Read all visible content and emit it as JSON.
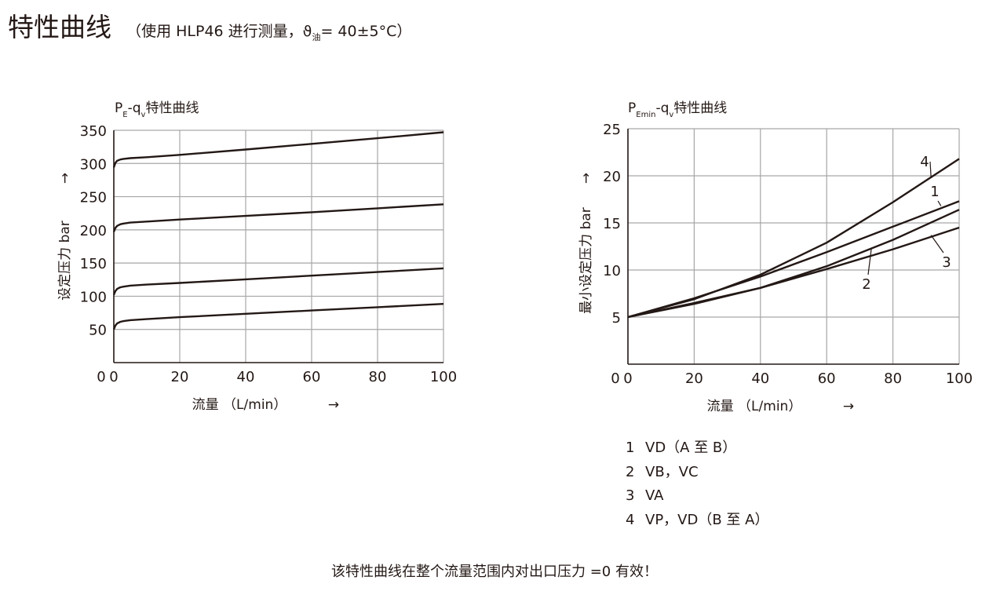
{
  "header": {
    "title": "特性曲线",
    "subtitle_a": "（使用 HLP46 进行测量，ϑ",
    "subtitle_sub": "油",
    "subtitle_b": "= 40±5°C）"
  },
  "colors": {
    "curve": "#231815",
    "grid": "#a6a6a6",
    "axis": "#231815",
    "text": "#231815"
  },
  "chart_data": [
    {
      "type": "line",
      "title_main": "P",
      "title_sub1": "E",
      "title_mid": "-q",
      "title_sub2": "v",
      "title_tail": "特性曲线",
      "xlabel": "流量  （L/min）",
      "ylabel": "设定压力  bar",
      "xlim": [
        0,
        100
      ],
      "ylim": [
        0,
        350
      ],
      "xticks": [
        0,
        20,
        40,
        60,
        80,
        100
      ],
      "yticks": [
        50,
        100,
        150,
        200,
        250,
        300,
        350
      ],
      "grid": true,
      "series": [
        {
          "x": [
            0,
            0.5,
            1,
            2,
            3,
            5,
            10,
            20,
            40,
            60,
            80,
            100
          ],
          "y": [
            50,
            56,
            59,
            61.5,
            62.5,
            64,
            65.5,
            68.5,
            73.5,
            78.5,
            83.5,
            88.5
          ]
        },
        {
          "x": [
            0,
            0.5,
            1,
            2,
            3,
            5,
            10,
            20,
            40,
            60,
            80,
            100
          ],
          "y": [
            102,
            108,
            111,
            113.5,
            114.5,
            116,
            117.5,
            120,
            125.5,
            131,
            136.5,
            142
          ]
        },
        {
          "x": [
            0,
            0.5,
            1,
            2,
            3,
            5,
            10,
            20,
            40,
            60,
            80,
            100
          ],
          "y": [
            197,
            203,
            206,
            208.5,
            209.5,
            211,
            212.5,
            215.5,
            221,
            226.5,
            232.5,
            238.5
          ]
        },
        {
          "x": [
            0,
            0.5,
            1,
            2,
            3,
            5,
            10,
            20,
            40,
            60,
            80,
            100
          ],
          "y": [
            294,
            301,
            304,
            306,
            307,
            308,
            309.5,
            313,
            321,
            329.5,
            338,
            347
          ]
        }
      ]
    },
    {
      "type": "line",
      "title_main": "P",
      "title_sub1": "Emin",
      "title_mid": "-q",
      "title_sub2": "v",
      "title_tail": "特性曲线",
      "xlabel": "流量  （L/min）",
      "ylabel": "最小设定压力  bar",
      "xlim": [
        0,
        100
      ],
      "ylim": [
        0,
        25
      ],
      "xticks": [
        0,
        20,
        40,
        60,
        80,
        100
      ],
      "yticks": [
        5,
        10,
        15,
        20,
        25
      ],
      "grid": true,
      "series": [
        {
          "name": "1",
          "x": [
            0,
            20,
            40,
            60,
            80,
            100
          ],
          "y": [
            5,
            7,
            9.3,
            11.9,
            14.6,
            17.3
          ]
        },
        {
          "name": "2",
          "x": [
            0,
            20,
            40,
            60,
            80,
            100
          ],
          "y": [
            5,
            6.4,
            8.1,
            10.4,
            13.2,
            16.4
          ]
        },
        {
          "name": "3",
          "x": [
            0,
            20,
            40,
            60,
            80,
            100
          ],
          "y": [
            5,
            6.5,
            8.1,
            10.1,
            12.2,
            14.5
          ]
        },
        {
          "name": "4",
          "x": [
            0,
            20,
            40,
            60,
            80,
            100
          ],
          "y": [
            5,
            6.9,
            9.5,
            12.9,
            17.2,
            21.8
          ]
        }
      ]
    }
  ],
  "legend": [
    {
      "num": "1",
      "text": "VD（A 至 B）"
    },
    {
      "num": "2",
      "text": "VB，VC"
    },
    {
      "num": "3",
      "text": "VA"
    },
    {
      "num": "4",
      "text": "VP，VD（B 至 A）"
    }
  ],
  "arrows": {
    "right": "→",
    "up": "→"
  },
  "footnote": "该特性曲线在整个流量范围内对出口压力 =0 有效！"
}
